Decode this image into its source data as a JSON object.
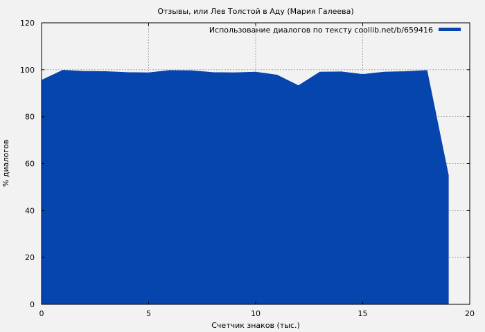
{
  "chart_data": {
    "type": "area",
    "title": "Отзывы, или Лев Толстой в Аду (Мария Галеева)",
    "xlabel": "Счетчик знаков (тыс.)",
    "ylabel": "% диалогов",
    "xlim": [
      0,
      20
    ],
    "ylim": [
      0,
      120
    ],
    "xticks": [
      0,
      5,
      10,
      15,
      20
    ],
    "yticks": [
      0,
      20,
      40,
      60,
      80,
      100,
      120
    ],
    "grid": true,
    "legend_position": "top-right",
    "series": [
      {
        "name": "Использование диалогов по тексту coollib.net/b/659416",
        "color": "#0645ad",
        "x": [
          0,
          1,
          2,
          3,
          4,
          5,
          6,
          7,
          8,
          9,
          10,
          11,
          12,
          13,
          14,
          15,
          16,
          17,
          18,
          19
        ],
        "values": [
          95.5,
          99.8,
          99.3,
          99.2,
          98.8,
          98.7,
          99.7,
          99.6,
          98.8,
          98.7,
          99.0,
          97.7,
          93.2,
          99.0,
          99.1,
          98.0,
          99.0,
          99.2,
          99.7,
          55.0
        ]
      }
    ]
  }
}
